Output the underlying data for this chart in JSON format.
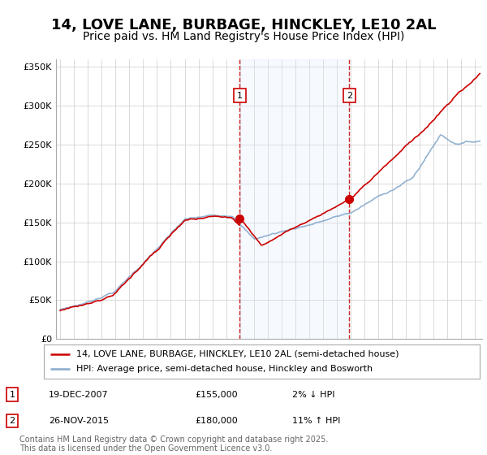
{
  "title": "14, LOVE LANE, BURBAGE, HINCKLEY, LE10 2AL",
  "subtitle": "Price paid vs. HM Land Registry's House Price Index (HPI)",
  "ylabel_ticks": [
    "£0",
    "£50K",
    "£100K",
    "£150K",
    "£200K",
    "£250K",
    "£300K",
    "£350K"
  ],
  "ylim": [
    0,
    360000
  ],
  "xlim_start": 1994.7,
  "xlim_end": 2025.5,
  "legend_line1": "14, LOVE LANE, BURBAGE, HINCKLEY, LE10 2AL (semi-detached house)",
  "legend_line2": "HPI: Average price, semi-detached house, Hinckley and Bosworth",
  "event1_label": "1",
  "event1_date": "19-DEC-2007",
  "event1_price": "£155,000",
  "event1_hpi": "2% ↓ HPI",
  "event1_x": 2007.97,
  "event1_y": 155000,
  "event2_label": "2",
  "event2_date": "26-NOV-2015",
  "event2_price": "£180,000",
  "event2_hpi": "11% ↑ HPI",
  "event2_x": 2015.9,
  "event2_y": 180000,
  "line_color_price": "#cc0000",
  "line_color_hpi": "#88aacc",
  "shade_color": "#ddeeff",
  "background_color": "#ffffff",
  "plot_bg_color": "#ffffff",
  "grid_color": "#cccccc",
  "footer": "Contains HM Land Registry data © Crown copyright and database right 2025.\nThis data is licensed under the Open Government Licence v3.0.",
  "title_fontsize": 13,
  "subtitle_fontsize": 10,
  "tick_fontsize": 8,
  "footer_fontsize": 7
}
